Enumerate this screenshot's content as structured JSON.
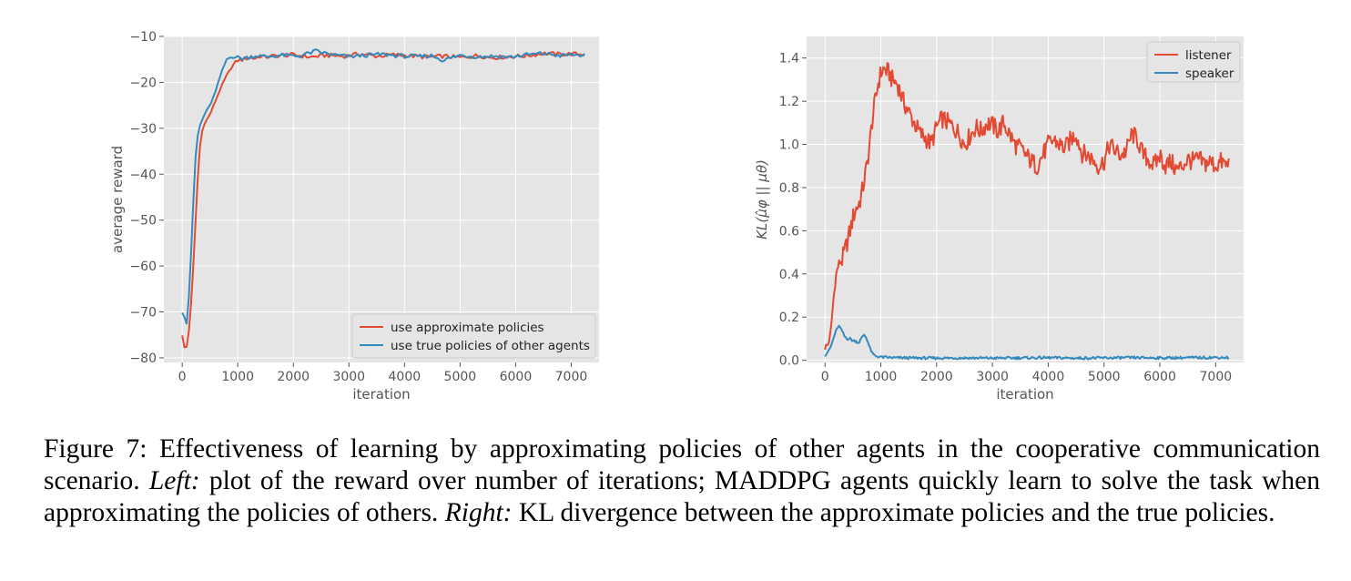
{
  "caption": {
    "label": "Figure 7:",
    "text1": "Effectiveness of learning by approximating policies of other agents in the cooperative communication scenario.",
    "left_label": "Left:",
    "text2": "plot of the reward over number of iterations; MADDPG agents quickly learn to solve the task when approximating the policies of others.",
    "right_label": "Right:",
    "text3": "KL divergence between the approximate policies and the true policies."
  },
  "chart_data": [
    {
      "type": "line",
      "title": "",
      "xlabel": "iteration",
      "ylabel": "average reward",
      "xlim": [
        -330,
        7500
      ],
      "ylim": [
        -81,
        -10
      ],
      "xticks": [
        0,
        1000,
        2000,
        3000,
        4000,
        5000,
        6000,
        7000
      ],
      "yticks": [
        -80,
        -70,
        -60,
        -50,
        -40,
        -30,
        -20,
        -10
      ],
      "grid": true,
      "legend": "lower right",
      "series": [
        {
          "name": "use approximate policies",
          "color": "#e24a33",
          "x": [
            0,
            50,
            100,
            150,
            200,
            250,
            300,
            350,
            400,
            500,
            600,
            700,
            800,
            900,
            1000,
            1100,
            1200,
            1300,
            1400,
            1500,
            1700,
            2000,
            2300,
            2600,
            2900,
            3200,
            3500,
            3800,
            4100,
            4400,
            4700,
            5000,
            5300,
            5600,
            5900,
            6200,
            6500,
            6800,
            7000,
            7250
          ],
          "y": [
            -75,
            -78.5,
            -77,
            -70,
            -60,
            -48,
            -36,
            -31,
            -29,
            -27,
            -24,
            -21,
            -18.5,
            -16.5,
            -15.2,
            -15,
            -14.6,
            -14.8,
            -14.3,
            -14.5,
            -14.2,
            -14,
            -14.5,
            -14.1,
            -14.3,
            -13.8,
            -14.3,
            -14,
            -14.2,
            -14.5,
            -14.3,
            -14.6,
            -14.2,
            -14.6,
            -14.4,
            -14.2,
            -13.7,
            -13.9,
            -13.8,
            -13.9
          ]
        },
        {
          "name": "use true policies of other agents",
          "color": "#348abd",
          "x": [
            0,
            30,
            60,
            100,
            150,
            200,
            250,
            300,
            350,
            400,
            500,
            600,
            700,
            800,
            900,
            1000,
            1100,
            1300,
            1500,
            1800,
            2100,
            2400,
            2700,
            3000,
            3300,
            3600,
            3900,
            4200,
            4500,
            4700,
            5000,
            5300,
            5600,
            5900,
            6200,
            6500,
            6800,
            7000,
            7250
          ],
          "y": [
            -70,
            -69.5,
            -74,
            -71,
            -60,
            -46,
            -34,
            -30,
            -28.5,
            -27,
            -25,
            -22,
            -18,
            -15,
            -14.3,
            -14.6,
            -14.8,
            -14.2,
            -14.4,
            -14.1,
            -14.3,
            -13.2,
            -14,
            -14.4,
            -14.1,
            -13.9,
            -14.2,
            -14.4,
            -14.2,
            -15.2,
            -14.1,
            -14.4,
            -14.3,
            -14.5,
            -14,
            -13.7,
            -14.2,
            -14,
            -14.1
          ]
        }
      ]
    },
    {
      "type": "line",
      "title": "",
      "xlabel": "iteration",
      "ylabel": "KL(μ̂φ || μθ)",
      "xlim": [
        -330,
        7500
      ],
      "ylim": [
        -0.01,
        1.5
      ],
      "xticks": [
        0,
        1000,
        2000,
        3000,
        4000,
        5000,
        6000,
        7000
      ],
      "yticks": [
        0.0,
        0.2,
        0.4,
        0.6,
        0.8,
        1.0,
        1.2,
        1.4
      ],
      "grid": true,
      "legend": "upper right",
      "series": [
        {
          "name": "listener",
          "color": "#e24a33",
          "x": [
            0,
            50,
            100,
            150,
            200,
            250,
            300,
            350,
            400,
            450,
            500,
            550,
            600,
            650,
            700,
            750,
            800,
            850,
            900,
            950,
            1000,
            1050,
            1100,
            1150,
            1200,
            1300,
            1400,
            1500,
            1600,
            1700,
            1800,
            1900,
            2000,
            2100,
            2200,
            2300,
            2400,
            2500,
            2600,
            2700,
            2800,
            2900,
            3000,
            3100,
            3200,
            3300,
            3400,
            3500,
            3600,
            3700,
            3800,
            3900,
            4000,
            4100,
            4200,
            4300,
            4400,
            4500,
            4600,
            4700,
            4800,
            4900,
            5000,
            5100,
            5200,
            5300,
            5400,
            5500,
            5600,
            5700,
            5800,
            5900,
            6000,
            6100,
            6200,
            6300,
            6400,
            6500,
            6600,
            6700,
            6800,
            6900,
            7000,
            7100,
            7200,
            7250
          ],
          "y": [
            0.06,
            0.07,
            0.12,
            0.28,
            0.4,
            0.45,
            0.46,
            0.5,
            0.55,
            0.6,
            0.66,
            0.7,
            0.72,
            0.76,
            0.83,
            0.9,
            1.0,
            1.12,
            1.2,
            1.28,
            1.33,
            1.35,
            1.34,
            1.33,
            1.3,
            1.28,
            1.2,
            1.15,
            1.1,
            1.05,
            1.03,
            1.0,
            1.08,
            1.12,
            1.1,
            1.08,
            1.05,
            1.0,
            1.04,
            1.08,
            1.06,
            1.1,
            1.09,
            1.06,
            1.1,
            1.05,
            1.0,
            0.98,
            0.95,
            0.92,
            0.9,
            0.95,
            1.0,
            1.02,
            1.0,
            0.98,
            1.02,
            1.05,
            0.96,
            0.95,
            0.93,
            0.9,
            0.92,
            1.0,
            0.97,
            0.95,
            0.97,
            1.05,
            1.02,
            0.95,
            0.93,
            0.9,
            0.95,
            0.9,
            0.92,
            0.88,
            0.9,
            0.93,
            0.92,
            0.93,
            0.91,
            0.92,
            0.9,
            0.92,
            0.9,
            0.92
          ]
        },
        {
          "name": "speaker",
          "color": "#348abd",
          "x": [
            0,
            50,
            100,
            150,
            200,
            250,
            300,
            350,
            400,
            450,
            500,
            550,
            600,
            650,
            700,
            750,
            800,
            850,
            900,
            1000,
            1200,
            1500,
            2000,
            2500,
            3000,
            3500,
            4000,
            4500,
            5000,
            5500,
            6000,
            6500,
            7000,
            7250
          ],
          "y": [
            0.02,
            0.04,
            0.06,
            0.1,
            0.14,
            0.16,
            0.14,
            0.11,
            0.1,
            0.1,
            0.09,
            0.09,
            0.08,
            0.1,
            0.12,
            0.1,
            0.06,
            0.03,
            0.02,
            0.015,
            0.012,
            0.011,
            0.01,
            0.011,
            0.01,
            0.011,
            0.012,
            0.01,
            0.011,
            0.012,
            0.011,
            0.012,
            0.013,
            0.013
          ]
        }
      ]
    }
  ]
}
